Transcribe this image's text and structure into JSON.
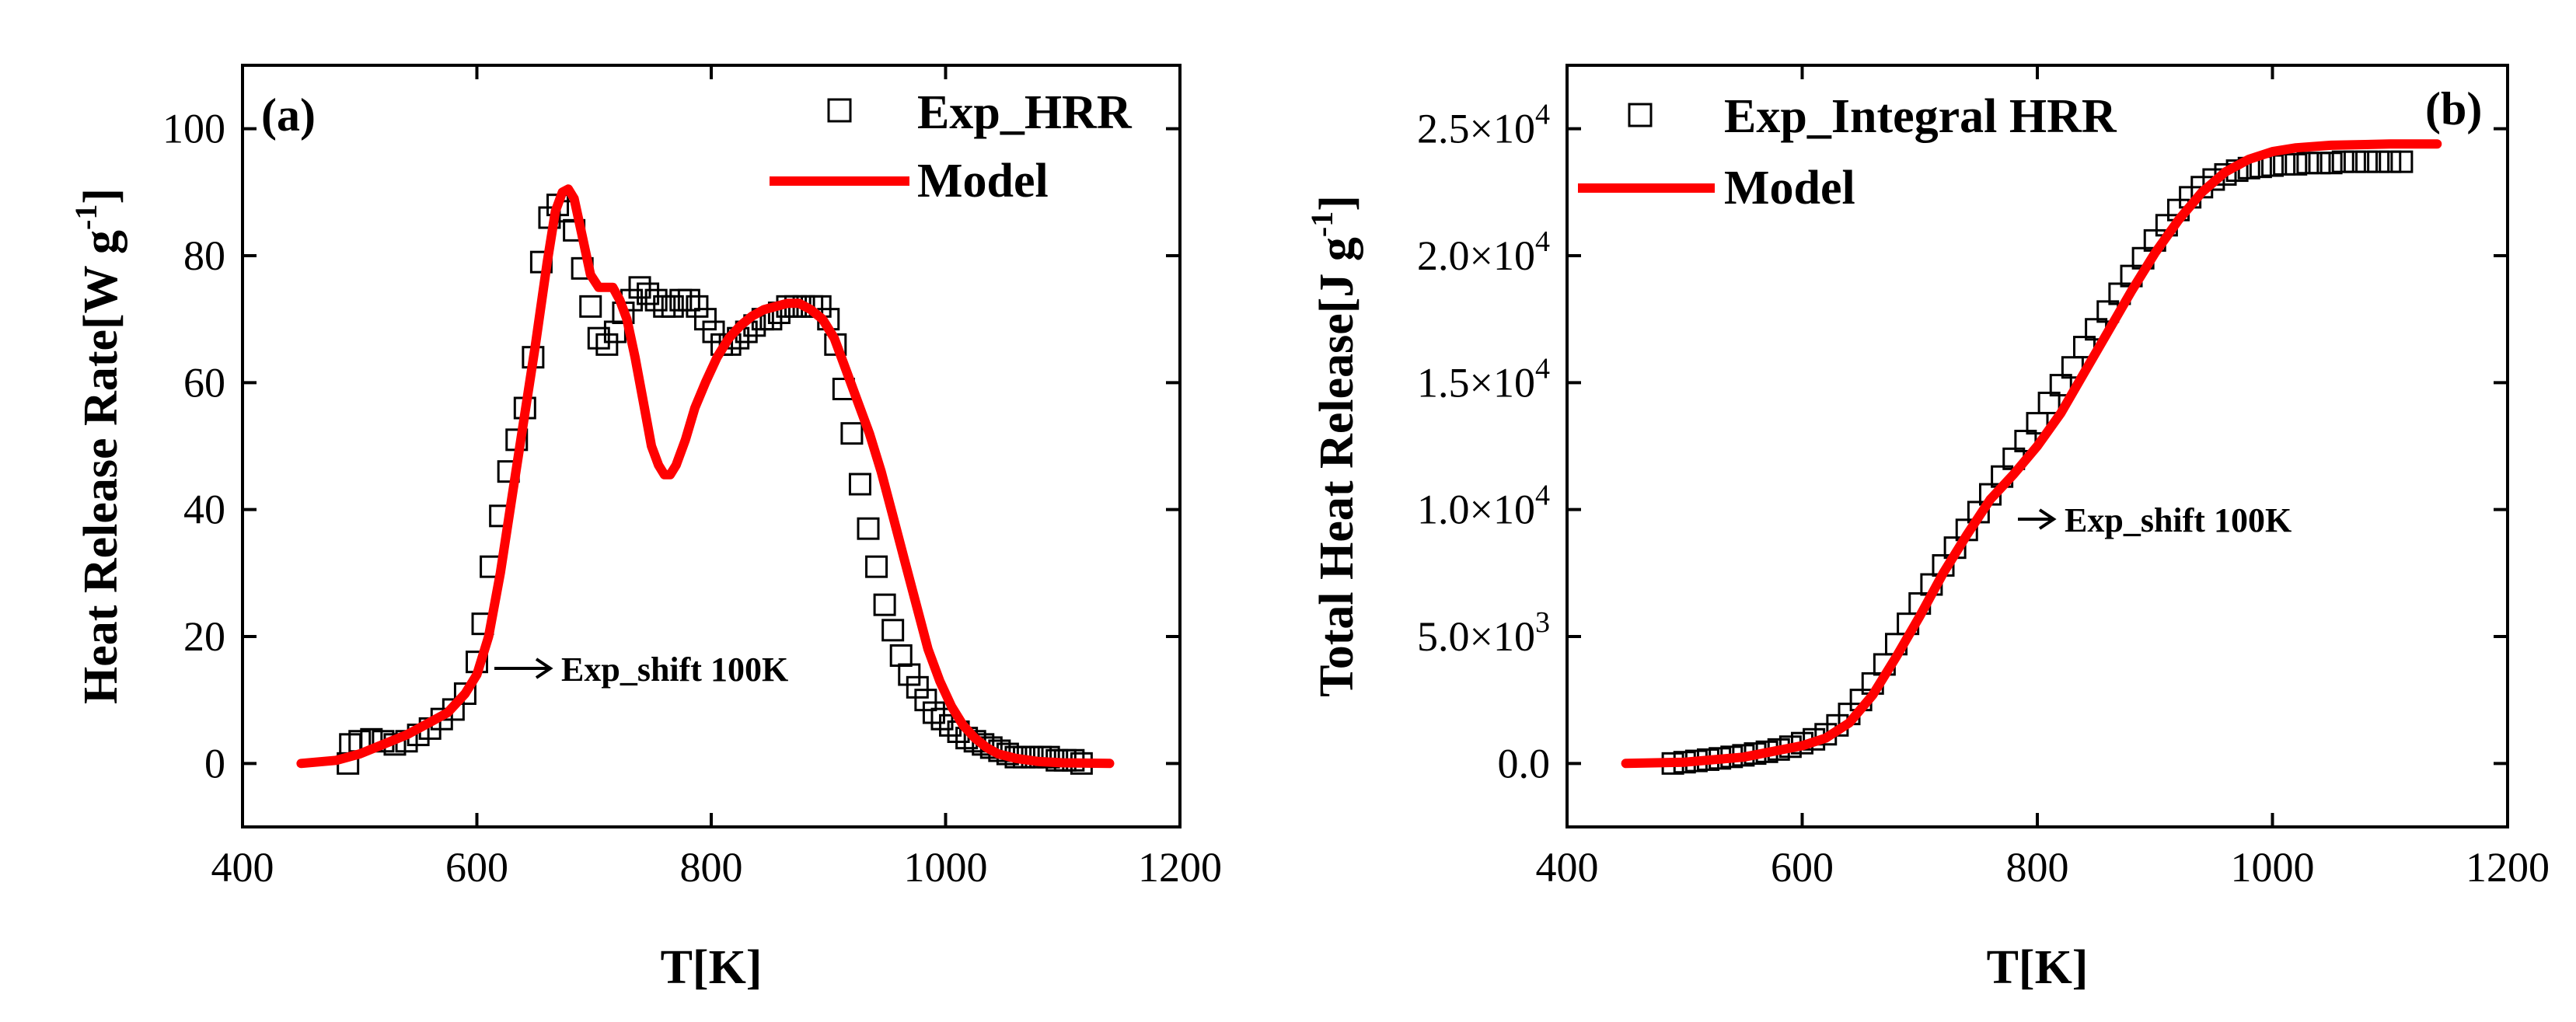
{
  "chart_data": [
    {
      "panel_label": "(a)",
      "type": "line",
      "xlabel": "T[K]",
      "ylabel_text": "Heat Release Rate[W g",
      "ylabel_sup": "-1",
      "ylabel_close": "]",
      "xlim": [
        400,
        1200
      ],
      "ylim": [
        -10,
        110
      ],
      "xticks": [
        400,
        600,
        800,
        1000,
        1200
      ],
      "yticks": [
        0,
        20,
        40,
        60,
        80,
        100
      ],
      "ytick_labels": [
        "0",
        "20",
        "40",
        "60",
        "80",
        "100"
      ],
      "legend": [
        {
          "label": "Exp_HRR",
          "marker": "open-square",
          "color": "#000000"
        },
        {
          "label": "Model",
          "marker": "line",
          "color": "#ff0000"
        }
      ],
      "annotation": {
        "text": "Exp_shift 100K",
        "at_x": 612,
        "at_y": 15
      },
      "series": [
        {
          "name": "Exp_HRR",
          "style": "markers",
          "color": "#000000",
          "points": [
            [
              490,
              0
            ],
            [
              492,
              3
            ],
            [
              500,
              3.5
            ],
            [
              510,
              3.8
            ],
            [
              520,
              3.5
            ],
            [
              530,
              3
            ],
            [
              540,
              3.5
            ],
            [
              550,
              4.5
            ],
            [
              560,
              5.5
            ],
            [
              570,
              7
            ],
            [
              580,
              8.5
            ],
            [
              590,
              11
            ],
            [
              600,
              16
            ],
            [
              605,
              22
            ],
            [
              612,
              31
            ],
            [
              620,
              39
            ],
            [
              627,
              46
            ],
            [
              634,
              51
            ],
            [
              641,
              56
            ],
            [
              648,
              64
            ],
            [
              655,
              79
            ],
            [
              662,
              86
            ],
            [
              669,
              88
            ],
            [
              676,
              87
            ],
            [
              683,
              84
            ],
            [
              690,
              78
            ],
            [
              697,
              72
            ],
            [
              704,
              67
            ],
            [
              711,
              66
            ],
            [
              718,
              68
            ],
            [
              725,
              71
            ],
            [
              732,
              73
            ],
            [
              739,
              75
            ],
            [
              746,
              74
            ],
            [
              753,
              73
            ],
            [
              760,
              72
            ],
            [
              767,
              72
            ],
            [
              774,
              73
            ],
            [
              781,
              73
            ],
            [
              788,
              72
            ],
            [
              795,
              70
            ],
            [
              802,
              68
            ],
            [
              809,
              66
            ],
            [
              816,
              66
            ],
            [
              823,
              67
            ],
            [
              830,
              68
            ],
            [
              837,
              69
            ],
            [
              844,
              70
            ],
            [
              851,
              70
            ],
            [
              858,
              71
            ],
            [
              865,
              72
            ],
            [
              872,
              72
            ],
            [
              879,
              72
            ],
            [
              886,
              72
            ],
            [
              893,
              72
            ],
            [
              900,
              70
            ],
            [
              906,
              66
            ],
            [
              913,
              59
            ],
            [
              920,
              52
            ],
            [
              927,
              44
            ],
            [
              934,
              37
            ],
            [
              941,
              31
            ],
            [
              948,
              25
            ],
            [
              955,
              21
            ],
            [
              962,
              17
            ],
            [
              969,
              14
            ],
            [
              976,
              12
            ],
            [
              983,
              10
            ],
            [
              990,
              8
            ],
            [
              997,
              7
            ],
            [
              1004,
              6
            ],
            [
              1011,
              5
            ],
            [
              1018,
              4
            ],
            [
              1025,
              3.5
            ],
            [
              1032,
              3
            ],
            [
              1039,
              2.5
            ],
            [
              1046,
              2
            ],
            [
              1053,
              1.5
            ],
            [
              1060,
              1
            ],
            [
              1067,
              1
            ],
            [
              1074,
              1
            ],
            [
              1081,
              1
            ],
            [
              1088,
              1
            ],
            [
              1095,
              0.5
            ],
            [
              1102,
              0.5
            ],
            [
              1109,
              0.5
            ],
            [
              1116,
              0
            ]
          ]
        },
        {
          "name": "Model",
          "style": "line",
          "color": "#ff0000",
          "points": [
            [
              450,
              0
            ],
            [
              480,
              0.5
            ],
            [
              500,
              1.5
            ],
            [
              520,
              3
            ],
            [
              540,
              4.5
            ],
            [
              560,
              6.5
            ],
            [
              575,
              8
            ],
            [
              590,
              11
            ],
            [
              600,
              14
            ],
            [
              610,
              20
            ],
            [
              620,
              30
            ],
            [
              630,
              42
            ],
            [
              640,
              54
            ],
            [
              650,
              66
            ],
            [
              660,
              79
            ],
            [
              667,
              87
            ],
            [
              673,
              90
            ],
            [
              678,
              90.5
            ],
            [
              683,
              89
            ],
            [
              690,
              83
            ],
            [
              697,
              77
            ],
            [
              704,
              75
            ],
            [
              711,
              75
            ],
            [
              716,
              75
            ],
            [
              722,
              73
            ],
            [
              728,
              70
            ],
            [
              735,
              64
            ],
            [
              742,
              57
            ],
            [
              749,
              50
            ],
            [
              755,
              47
            ],
            [
              760,
              45.5
            ],
            [
              765,
              45.5
            ],
            [
              770,
              47
            ],
            [
              778,
              51
            ],
            [
              786,
              56
            ],
            [
              795,
              60
            ],
            [
              805,
              64
            ],
            [
              815,
              67
            ],
            [
              825,
              69
            ],
            [
              835,
              70.5
            ],
            [
              845,
              71.5
            ],
            [
              855,
              72
            ],
            [
              865,
              72.5
            ],
            [
              875,
              72.5
            ],
            [
              885,
              71.5
            ],
            [
              895,
              70
            ],
            [
              905,
              67
            ],
            [
              915,
              62
            ],
            [
              925,
              57
            ],
            [
              935,
              52
            ],
            [
              945,
              46
            ],
            [
              955,
              39
            ],
            [
              965,
              32
            ],
            [
              975,
              25
            ],
            [
              985,
              18
            ],
            [
              995,
              13
            ],
            [
              1005,
              9
            ],
            [
              1015,
              6
            ],
            [
              1025,
              4
            ],
            [
              1035,
              2.5
            ],
            [
              1045,
              1.5
            ],
            [
              1060,
              0.8
            ],
            [
              1080,
              0.3
            ],
            [
              1100,
              0.1
            ],
            [
              1140,
              0
            ]
          ]
        }
      ]
    },
    {
      "panel_label": "(b)",
      "type": "line",
      "xlabel": "T[K]",
      "ylabel_text": "Total Heat Release[J g",
      "ylabel_sup": "-1",
      "ylabel_close": "]",
      "xlim": [
        400,
        1200
      ],
      "ylim": [
        -2500,
        27500
      ],
      "xticks": [
        400,
        600,
        800,
        1000,
        1200
      ],
      "yticks": [
        0,
        5000,
        10000,
        15000,
        20000,
        25000
      ],
      "ytick_labels": [
        {
          "mantissa": "0.0",
          "exp": ""
        },
        {
          "mantissa": "5.0×10",
          "exp": "3"
        },
        {
          "mantissa": "1.0×10",
          "exp": "4"
        },
        {
          "mantissa": "1.5×10",
          "exp": "4"
        },
        {
          "mantissa": "2.0×10",
          "exp": "4"
        },
        {
          "mantissa": "2.5×10",
          "exp": "4"
        }
      ],
      "legend": [
        {
          "label": "Exp_Integral HRR",
          "marker": "open-square",
          "color": "#000000"
        },
        {
          "label": "Model",
          "marker": "line",
          "color": "#ff0000"
        }
      ],
      "annotation": {
        "text": "Exp_shift 100K",
        "at_x": 770,
        "at_y": 9700
      },
      "series": [
        {
          "name": "Exp_Integral HRR",
          "style": "markers",
          "color": "#000000",
          "points": [
            [
              490,
              0
            ],
            [
              500,
              50
            ],
            [
              510,
              100
            ],
            [
              520,
              150
            ],
            [
              530,
              200
            ],
            [
              540,
              260
            ],
            [
              550,
              320
            ],
            [
              560,
              390
            ],
            [
              570,
              460
            ],
            [
              580,
              550
            ],
            [
              590,
              660
            ],
            [
              600,
              800
            ],
            [
              610,
              950
            ],
            [
              620,
              1150
            ],
            [
              630,
              1500
            ],
            [
              640,
              1950
            ],
            [
              650,
              2500
            ],
            [
              660,
              3150
            ],
            [
              670,
              3900
            ],
            [
              680,
              4700
            ],
            [
              690,
              5500
            ],
            [
              700,
              6300
            ],
            [
              710,
              7050
            ],
            [
              720,
              7800
            ],
            [
              730,
              8500
            ],
            [
              740,
              9200
            ],
            [
              750,
              9900
            ],
            [
              760,
              10600
            ],
            [
              770,
              11300
            ],
            [
              780,
              12000
            ],
            [
              790,
              12700
            ],
            [
              800,
              13400
            ],
            [
              810,
              14200
            ],
            [
              820,
              14900
            ],
            [
              830,
              15600
            ],
            [
              840,
              16400
            ],
            [
              850,
              17100
            ],
            [
              860,
              17800
            ],
            [
              870,
              18500
            ],
            [
              880,
              19200
            ],
            [
              890,
              19900
            ],
            [
              900,
              20600
            ],
            [
              910,
              21200
            ],
            [
              920,
              21800
            ],
            [
              930,
              22300
            ],
            [
              940,
              22700
            ],
            [
              950,
              23000
            ],
            [
              960,
              23200
            ],
            [
              970,
              23350
            ],
            [
              980,
              23450
            ],
            [
              990,
              23500
            ],
            [
              1000,
              23550
            ],
            [
              1010,
              23600
            ],
            [
              1020,
              23600
            ],
            [
              1030,
              23650
            ],
            [
              1040,
              23650
            ],
            [
              1050,
              23650
            ],
            [
              1060,
              23700
            ],
            [
              1070,
              23700
            ],
            [
              1080,
              23700
            ],
            [
              1090,
              23700
            ],
            [
              1100,
              23700
            ],
            [
              1110,
              23700
            ]
          ]
        },
        {
          "name": "Model",
          "style": "line",
          "color": "#ff0000",
          "points": [
            [
              450,
              0
            ],
            [
              500,
              50
            ],
            [
              550,
              250
            ],
            [
              600,
              700
            ],
            [
              620,
              1000
            ],
            [
              640,
              1600
            ],
            [
              660,
              2700
            ],
            [
              680,
              4200
            ],
            [
              700,
              5800
            ],
            [
              720,
              7500
            ],
            [
              740,
              9000
            ],
            [
              760,
              10400
            ],
            [
              780,
              11400
            ],
            [
              800,
              12500
            ],
            [
              820,
              13800
            ],
            [
              840,
              15400
            ],
            [
              860,
              17000
            ],
            [
              880,
              18600
            ],
            [
              900,
              20100
            ],
            [
              920,
              21400
            ],
            [
              940,
              22500
            ],
            [
              960,
              23300
            ],
            [
              980,
              23800
            ],
            [
              1000,
              24100
            ],
            [
              1020,
              24250
            ],
            [
              1050,
              24350
            ],
            [
              1100,
              24400
            ],
            [
              1140,
              24400
            ]
          ]
        }
      ]
    }
  ]
}
